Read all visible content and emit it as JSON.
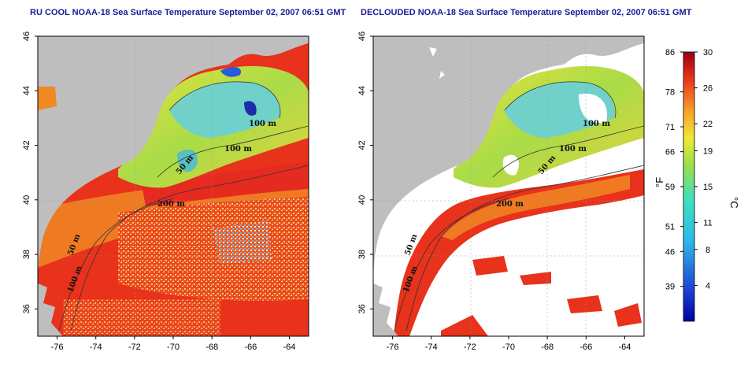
{
  "panels": [
    {
      "id": "ru-cool",
      "title": "RU COOL NOAA-18 Sea Surface Temperature September 02, 2007 06:51 GMT",
      "isobath_labels": [
        "100 m",
        "100 m",
        "50 m",
        "200 m",
        "50 m",
        "100 m"
      ]
    },
    {
      "id": "declouded",
      "title": "DECLOUDED NOAA-18 Sea Surface Temperature September 02, 2007 06:51 GMT",
      "isobath_labels": [
        "100 m",
        "100 m",
        "50 m",
        "200 m",
        "50 m",
        "100 m"
      ]
    }
  ],
  "axes": {
    "x_ticks": [
      "-76",
      "-74",
      "-72",
      "-70",
      "-68",
      "-66",
      "-64"
    ],
    "y_ticks": [
      "46",
      "44",
      "42",
      "40",
      "38",
      "36"
    ]
  },
  "colorbar": {
    "f_unit": "°F",
    "c_unit": "°C",
    "f_ticks": [
      "86",
      "78",
      "71",
      "66",
      "59",
      "51",
      "46",
      "39"
    ],
    "c_ticks": [
      "30",
      "26",
      "22",
      "19",
      "15",
      "11",
      "8",
      "4"
    ]
  },
  "colors": {
    "land": "#bebebe",
    "cloud_mask": "#ffffff",
    "warm": "#e8261c",
    "orange": "#f28a1e",
    "yellow": "#e8e23a",
    "green": "#8fd84a",
    "cyan": "#3ec8e0",
    "blue": "#2a5bd8",
    "title": "#1a1a9a"
  }
}
